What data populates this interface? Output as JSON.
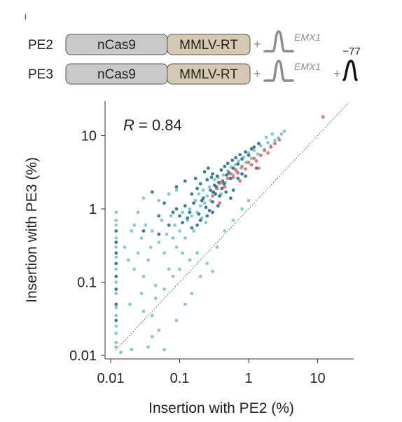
{
  "corner_mark": "ł",
  "constructs": [
    {
      "name": "PE2",
      "domains": [
        "nCas9",
        "MMLV-RT"
      ],
      "guide_label": "EMX1",
      "nick_label": ""
    },
    {
      "name": "PE3",
      "domains": [
        "nCas9",
        "MMLV-RT"
      ],
      "guide_label": "EMX1",
      "nick_label": "−77"
    }
  ],
  "colors": {
    "ncas9_fill": "#c9c9c9",
    "rt_fill": "#d6c9b1",
    "pegrna": "#8c8c8c",
    "nick_guide": "#111111",
    "dark_teal": "#2d6a8a",
    "light_teal": "#7cc3c6",
    "red": "#e06666"
  },
  "chart_data": {
    "type": "scatter",
    "title": "",
    "xlabel": "Insertion with PE2 (%)",
    "ylabel": "Insertion with PE3 (%)",
    "xscale": "log",
    "yscale": "log",
    "xlim": [
      0.01,
      30
    ],
    "ylim": [
      0.01,
      30
    ],
    "x_ticks": [
      0.01,
      0.1,
      1,
      10
    ],
    "x_tick_labels": [
      "0.01",
      "0.1",
      "1",
      "10"
    ],
    "y_ticks": [
      0.01,
      0.1,
      1,
      10
    ],
    "y_tick_labels": [
      "0.01",
      "0.1",
      "1",
      "10"
    ],
    "diagonal": "y = x",
    "annotation_label": "R",
    "annotation_value": " = 0.84",
    "grid": false,
    "series": [
      {
        "color": "dark_teal",
        "points": [
          [
            0.012,
            0.5
          ],
          [
            0.012,
            0.35
          ],
          [
            0.012,
            0.25
          ],
          [
            0.012,
            0.18
          ],
          [
            0.012,
            0.12
          ],
          [
            0.012,
            0.08
          ],
          [
            0.012,
            0.05
          ],
          [
            0.012,
            0.03
          ],
          [
            0.15,
            1.6
          ],
          [
            0.18,
            1.9
          ],
          [
            0.2,
            2.2
          ],
          [
            0.22,
            1.4
          ],
          [
            0.25,
            2.5
          ],
          [
            0.28,
            1.8
          ],
          [
            0.3,
            3.0
          ],
          [
            0.32,
            2.1
          ],
          [
            0.35,
            2.8
          ],
          [
            0.38,
            1.5
          ],
          [
            0.4,
            3.4
          ],
          [
            0.42,
            2.4
          ],
          [
            0.45,
            3.8
          ],
          [
            0.48,
            2.9
          ],
          [
            0.5,
            4.2
          ],
          [
            0.52,
            3.1
          ],
          [
            0.55,
            2.6
          ],
          [
            0.58,
            4.6
          ],
          [
            0.6,
            3.6
          ],
          [
            0.65,
            5.0
          ],
          [
            0.7,
            4.1
          ],
          [
            0.75,
            5.5
          ],
          [
            0.8,
            4.8
          ],
          [
            0.9,
            6.0
          ],
          [
            1.0,
            5.4
          ],
          [
            1.1,
            6.6
          ],
          [
            1.2,
            7.0
          ],
          [
            1.4,
            7.8
          ],
          [
            0.12,
            1.1
          ],
          [
            0.14,
            0.9
          ],
          [
            0.16,
            1.2
          ],
          [
            0.19,
            0.85
          ],
          [
            0.21,
            1.3
          ],
          [
            0.24,
            1.05
          ],
          [
            0.27,
            0.95
          ],
          [
            0.3,
            1.25
          ],
          [
            0.33,
            1.6
          ],
          [
            0.36,
            1.1
          ],
          [
            0.1,
            0.8
          ],
          [
            0.09,
            1.0
          ],
          [
            0.11,
            0.65
          ],
          [
            0.13,
            0.75
          ],
          [
            0.08,
            0.9
          ],
          [
            0.07,
            0.6
          ],
          [
            0.06,
            1.2
          ],
          [
            0.05,
            0.8
          ],
          [
            0.17,
            2.6
          ],
          [
            0.23,
            3.2
          ],
          [
            0.26,
            3.6
          ],
          [
            0.29,
            2.7
          ],
          [
            0.31,
            1.7
          ],
          [
            0.34,
            2.0
          ],
          [
            0.37,
            2.3
          ],
          [
            0.41,
            1.9
          ],
          [
            0.44,
            2.2
          ],
          [
            0.47,
            1.7
          ],
          [
            0.2,
            0.7
          ],
          [
            0.25,
            0.8
          ],
          [
            0.15,
            0.55
          ],
          [
            0.18,
            0.6
          ],
          [
            0.04,
            1.7
          ],
          [
            0.09,
            2.0
          ],
          [
            0.12,
            2.4
          ],
          [
            0.6,
            1.8
          ],
          [
            0.7,
            2.6
          ],
          [
            0.8,
            3.0
          ],
          [
            0.05,
            0.45
          ],
          [
            0.03,
            0.5
          ],
          [
            0.3,
            0.9
          ],
          [
            0.55,
            1.4
          ],
          [
            0.9,
            2.8
          ],
          [
            1.3,
            3.6
          ]
        ]
      },
      {
        "color": "light_teal",
        "points": [
          [
            0.012,
            0.9
          ],
          [
            0.012,
            0.7
          ],
          [
            0.012,
            0.6
          ],
          [
            0.012,
            0.4
          ],
          [
            0.012,
            0.3
          ],
          [
            0.012,
            0.22
          ],
          [
            0.012,
            0.15
          ],
          [
            0.012,
            0.1
          ],
          [
            0.012,
            0.07
          ],
          [
            0.012,
            0.045
          ],
          [
            0.012,
            0.035
          ],
          [
            0.012,
            0.025
          ],
          [
            0.012,
            0.02
          ],
          [
            0.012,
            0.015
          ],
          [
            0.012,
            0.013
          ],
          [
            0.014,
            0.011
          ],
          [
            0.02,
            0.012
          ],
          [
            0.016,
            0.3
          ],
          [
            0.018,
            0.2
          ],
          [
            0.02,
            0.5
          ],
          [
            0.022,
            0.15
          ],
          [
            0.025,
            0.25
          ],
          [
            0.028,
            0.4
          ],
          [
            0.03,
            0.12
          ],
          [
            0.032,
            0.6
          ],
          [
            0.035,
            0.2
          ],
          [
            0.038,
            0.3
          ],
          [
            0.04,
            0.5
          ],
          [
            0.045,
            0.09
          ],
          [
            0.05,
            0.35
          ],
          [
            0.055,
            0.7
          ],
          [
            0.06,
            0.25
          ],
          [
            0.065,
            0.45
          ],
          [
            0.07,
            0.15
          ],
          [
            0.075,
            0.8
          ],
          [
            0.08,
            0.4
          ],
          [
            0.085,
            0.6
          ],
          [
            0.09,
            0.3
          ],
          [
            0.1,
            0.5
          ],
          [
            0.11,
            0.9
          ],
          [
            0.12,
            0.4
          ],
          [
            0.13,
            0.7
          ],
          [
            0.14,
            1.0
          ],
          [
            0.15,
            0.8
          ],
          [
            0.16,
            0.5
          ],
          [
            0.17,
            1.3
          ],
          [
            0.18,
            0.9
          ],
          [
            0.19,
            1.6
          ],
          [
            0.2,
            1.1
          ],
          [
            0.21,
            0.75
          ],
          [
            0.22,
            1.8
          ],
          [
            0.23,
            1.2
          ],
          [
            0.24,
            0.65
          ],
          [
            0.25,
            1.5
          ],
          [
            0.27,
            2.0
          ],
          [
            0.28,
            1.3
          ],
          [
            0.3,
            1.7
          ],
          [
            0.32,
            2.5
          ],
          [
            0.34,
            1.9
          ],
          [
            0.36,
            2.7
          ],
          [
            0.38,
            2.2
          ],
          [
            0.4,
            1.6
          ],
          [
            0.43,
            2.9
          ],
          [
            0.46,
            2.3
          ],
          [
            0.5,
            3.3
          ],
          [
            0.53,
            2.6
          ],
          [
            0.56,
            3.7
          ],
          [
            0.6,
            2.9
          ],
          [
            0.64,
            4.0
          ],
          [
            0.68,
            3.2
          ],
          [
            0.72,
            4.5
          ],
          [
            0.78,
            3.6
          ],
          [
            0.85,
            5.1
          ],
          [
            0.92,
            4.3
          ],
          [
            1.0,
            5.8
          ],
          [
            1.1,
            4.9
          ],
          [
            1.2,
            6.3
          ],
          [
            1.35,
            5.6
          ],
          [
            1.5,
            7.3
          ],
          [
            1.7,
            6.5
          ],
          [
            1.9,
            8.0
          ],
          [
            2.1,
            7.2
          ],
          [
            2.4,
            8.6
          ],
          [
            2.7,
            9.3
          ],
          [
            3.0,
            10.5
          ],
          [
            3.3,
            11.5
          ],
          [
            2.2,
            10.5
          ],
          [
            1.8,
            9.5
          ],
          [
            0.035,
            0.013
          ],
          [
            0.06,
            0.012
          ],
          [
            0.04,
            0.018
          ],
          [
            0.05,
            0.022
          ],
          [
            0.09,
            0.03
          ],
          [
            0.15,
            0.07
          ],
          [
            0.12,
            0.05
          ],
          [
            0.2,
            0.12
          ],
          [
            0.25,
            0.18
          ],
          [
            0.3,
            0.14
          ],
          [
            0.18,
            0.25
          ],
          [
            0.14,
            0.2
          ],
          [
            0.1,
            0.15
          ],
          [
            0.08,
            0.12
          ],
          [
            0.06,
            0.08
          ],
          [
            0.045,
            0.06
          ],
          [
            0.03,
            0.04
          ],
          [
            0.35,
            0.3
          ],
          [
            0.45,
            0.5
          ],
          [
            0.6,
            0.7
          ],
          [
            0.8,
            1.0
          ],
          [
            1.0,
            1.3
          ],
          [
            0.07,
            1.6
          ],
          [
            0.05,
            1.3
          ],
          [
            0.09,
            1.8
          ],
          [
            0.025,
            0.9
          ],
          [
            0.03,
            1.4
          ],
          [
            0.022,
            0.6
          ],
          [
            0.028,
            0.07
          ],
          [
            0.019,
            0.05
          ],
          [
            0.04,
            0.035
          ],
          [
            0.11,
            0.25
          ]
        ]
      },
      {
        "color": "red",
        "points": [
          [
            0.3,
            1.5
          ],
          [
            0.35,
            1.9
          ],
          [
            0.4,
            2.3
          ],
          [
            0.45,
            2.0
          ],
          [
            0.5,
            2.6
          ],
          [
            0.55,
            3.0
          ],
          [
            0.6,
            2.7
          ],
          [
            0.65,
            3.4
          ],
          [
            0.7,
            3.1
          ],
          [
            0.8,
            3.8
          ],
          [
            0.9,
            3.5
          ],
          [
            1.0,
            4.3
          ],
          [
            1.1,
            4.0
          ],
          [
            1.2,
            4.9
          ],
          [
            1.3,
            4.5
          ],
          [
            1.5,
            5.4
          ],
          [
            1.7,
            6.3
          ],
          [
            1.9,
            5.8
          ],
          [
            2.1,
            7.0
          ],
          [
            2.4,
            7.8
          ],
          [
            2.8,
            8.8
          ],
          [
            1.4,
            3.6
          ],
          [
            0.75,
            2.4
          ],
          [
            0.38,
            1.2
          ],
          [
            12,
            18
          ]
        ]
      }
    ]
  }
}
